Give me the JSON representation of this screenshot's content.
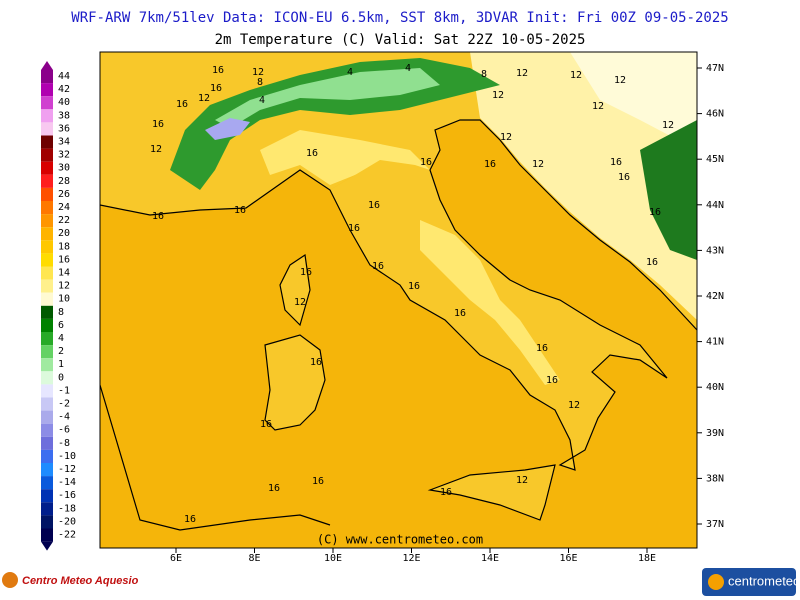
{
  "header": {
    "title": "WRF-ARW 7km/51lev  Data: ICON-EU 6.5km, SST 8km, 3DVAR  Init: Fri 00Z 09-05-2025",
    "subtitle": "2m Temperature (C)  Valid: Sat 22Z 10-05-2025"
  },
  "colorbar": {
    "labels": [
      "44",
      "42",
      "40",
      "38",
      "36",
      "34",
      "32",
      "30",
      "28",
      "26",
      "24",
      "22",
      "20",
      "18",
      "16",
      "14",
      "12",
      "10",
      "8",
      "6",
      "4",
      "2",
      "1",
      "0",
      "-1",
      "-2",
      "-4",
      "-6",
      "-8",
      "-10",
      "-12",
      "-14",
      "-16",
      "-18",
      "-20",
      "-22"
    ],
    "colors": [
      "#8a008a",
      "#b000b0",
      "#d040d0",
      "#f0a0f0",
      "#f8c8f0",
      "#6e0000",
      "#a00000",
      "#d80000",
      "#ff1e1e",
      "#ff5000",
      "#ff7800",
      "#ff9600",
      "#ffb400",
      "#ffc800",
      "#ffdc00",
      "#ffe650",
      "#fff08c",
      "#fffad2",
      "#005a00",
      "#008200",
      "#28aa28",
      "#64d264",
      "#a0eaa0",
      "#dcfadc",
      "#e6e6ff",
      "#c8c8f5",
      "#aaaaeb",
      "#8c8ce6",
      "#6e6edc",
      "#3c6ef0",
      "#1e8cff",
      "#0a5adc",
      "#0032b4",
      "#001e8c",
      "#001464",
      "#000050"
    ]
  },
  "axes": {
    "lat_labels": [
      "47N",
      "46N",
      "45N",
      "44N",
      "43N",
      "42N",
      "41N",
      "40N",
      "39N",
      "38N",
      "37N"
    ],
    "lon_labels": [
      "6E",
      "8E",
      "10E",
      "12E",
      "14E",
      "16E",
      "18E"
    ]
  },
  "map": {
    "contour_labels": [
      "16",
      "12",
      "16",
      "16",
      "12",
      "8",
      "4",
      "4",
      "8",
      "4",
      "12",
      "12",
      "12",
      "12",
      "12",
      "12",
      "12",
      "16",
      "12",
      "16",
      "16",
      "16",
      "16",
      "16",
      "16",
      "12",
      "16",
      "16",
      "16",
      "16",
      "12",
      "16",
      "16",
      "16",
      "16",
      "16",
      "12",
      "16",
      "16",
      "16",
      "16",
      "12",
      "16",
      "16",
      "16",
      "16"
    ]
  },
  "footer": {
    "copyright": "(C) www.centrometeo.com",
    "left_logo": "Centro Meteo Aquesio",
    "right_logo": "centrometeo"
  }
}
